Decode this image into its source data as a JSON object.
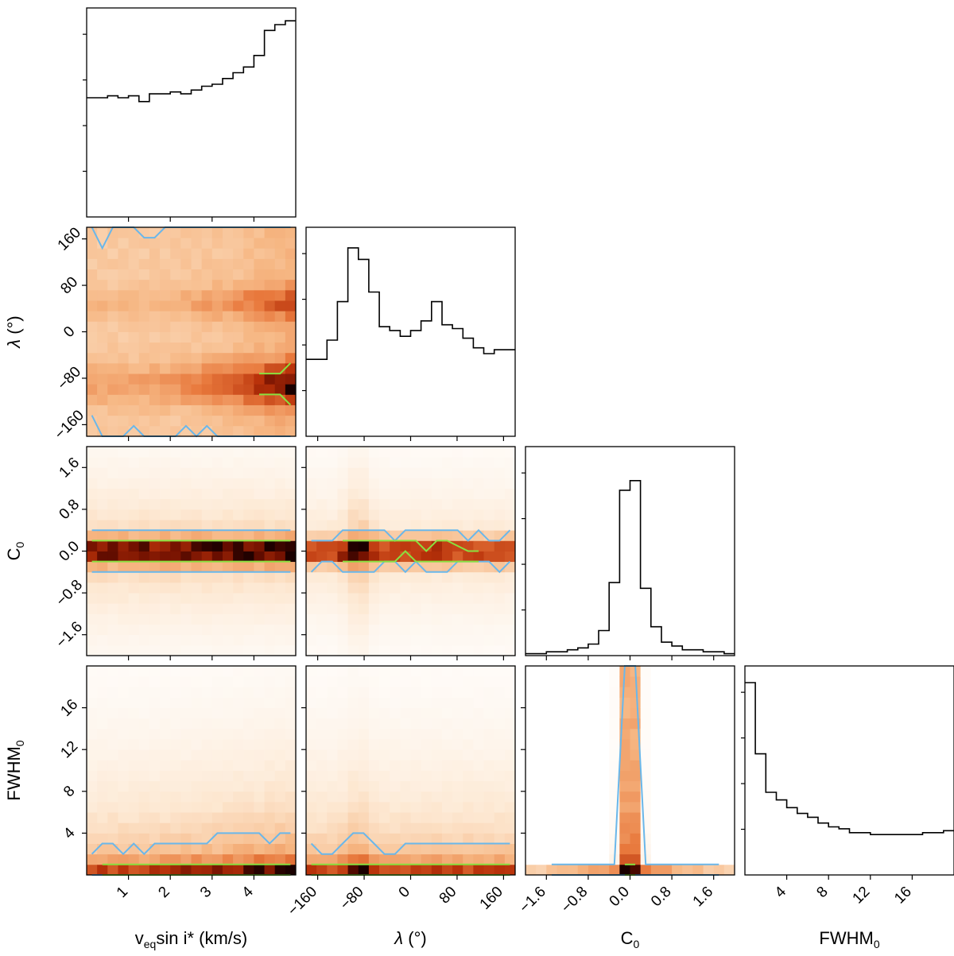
{
  "chart_data": {
    "type": "heatmap",
    "variables": [
      {
        "key": "vsini",
        "label_parts": [
          [
            "v",
            "n"
          ],
          [
            "eq",
            "sub"
          ],
          [
            "sin i",
            "n"
          ],
          [
            "*",
            "n"
          ],
          [
            " (km/s)",
            "n"
          ]
        ],
        "range": [
          0,
          5
        ],
        "ticks": [
          1,
          2,
          3,
          4
        ],
        "tick_labels": [
          "1",
          "2",
          "3",
          "4"
        ]
      },
      {
        "key": "lambda",
        "label_parts": [
          [
            "λ",
            "i"
          ],
          [
            " (°)",
            "n"
          ]
        ],
        "range": [
          -180,
          180
        ],
        "ticks": [
          -160,
          -80,
          0,
          80,
          160
        ],
        "tick_labels": [
          "−160",
          "−80",
          "0",
          "80",
          "160"
        ]
      },
      {
        "key": "C0",
        "label_parts": [
          [
            "C",
            "n"
          ],
          [
            "0",
            "sub"
          ]
        ],
        "range": [
          -2,
          2
        ],
        "ticks": [
          -1.6,
          -0.8,
          0.0,
          0.8,
          1.6
        ],
        "tick_labels": [
          "−1.6",
          "−0.8",
          "0.0",
          "0.8",
          "1.6"
        ]
      },
      {
        "key": "FWHM0",
        "label_parts": [
          [
            "FWHM",
            "n"
          ],
          [
            "0",
            "sub"
          ]
        ],
        "range": [
          0,
          20
        ],
        "ticks": [
          4,
          8,
          12,
          16
        ],
        "tick_labels": [
          "4",
          "8",
          "12",
          "16"
        ]
      }
    ],
    "histograms_1d": [
      [
        0.62,
        0.62,
        0.63,
        0.62,
        0.63,
        0.6,
        0.64,
        0.64,
        0.65,
        0.64,
        0.66,
        0.68,
        0.69,
        0.72,
        0.75,
        0.78,
        0.84,
        0.97,
        1.0,
        1.02
      ],
      [
        0.4,
        0.4,
        0.5,
        0.7,
        0.98,
        0.92,
        0.75,
        0.57,
        0.55,
        0.52,
        0.55,
        0.6,
        0.7,
        0.58,
        0.56,
        0.51,
        0.46,
        0.43,
        0.45,
        0.45
      ],
      [
        0.01,
        0.01,
        0.02,
        0.02,
        0.03,
        0.04,
        0.06,
        0.13,
        0.38,
        0.86,
        0.91,
        0.35,
        0.15,
        0.07,
        0.05,
        0.03,
        0.03,
        0.02,
        0.02,
        0.01
      ],
      [
        1.0,
        0.63,
        0.43,
        0.39,
        0.35,
        0.32,
        0.3,
        0.27,
        0.25,
        0.24,
        0.22,
        0.22,
        0.21,
        0.21,
        0.21,
        0.21,
        0.21,
        0.22,
        0.22,
        0.23
      ]
    ],
    "contour_levels": [
      "inner (green)",
      "outer (blue)"
    ],
    "colors": {
      "hist_line": "#000000",
      "contour_outer": "#6ab7ea",
      "contour_inner": "#8ae03f",
      "density_low": "#ffffff",
      "density_mid": "#f0a068",
      "density_high": "#b02a00",
      "density_max": "#1a0000"
    },
    "grid": false,
    "legend": "none"
  }
}
